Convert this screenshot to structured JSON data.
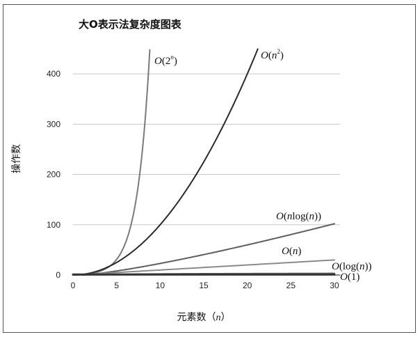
{
  "chart_data": {
    "type": "line",
    "title": "大O表示法复杂度图表",
    "xlabel_text": "元素数（",
    "xlabel_var": "n",
    "xlabel_close": "）",
    "ylabel": "操作数",
    "xlim": [
      0,
      30
    ],
    "ylim": [
      0,
      450
    ],
    "x_ticks": [
      0,
      5,
      10,
      15,
      20,
      25,
      30
    ],
    "y_ticks": [
      0,
      100,
      200,
      300,
      400
    ],
    "grid": "horizontal",
    "series": [
      {
        "name": "O(2^n)",
        "fn": "exp2",
        "color": "#7a7a7a",
        "width": 2,
        "x_range": [
          0,
          8.81
        ],
        "points": [
          [
            0,
            1
          ],
          [
            2,
            4
          ],
          [
            4,
            16
          ],
          [
            6,
            64
          ],
          [
            7,
            128
          ],
          [
            8,
            256
          ],
          [
            8.81,
            450
          ]
        ],
        "label": {
          "pre": "",
          "O": "O",
          "post1": "(2",
          "sup": "n",
          "post2": ")"
        }
      },
      {
        "name": "O(n^2)",
        "fn": "square",
        "color": "#2a2a2a",
        "width": 2,
        "x_range": [
          0,
          21.2
        ],
        "points": [
          [
            0,
            0
          ],
          [
            5,
            25
          ],
          [
            10,
            100
          ],
          [
            15,
            225
          ],
          [
            20,
            400
          ],
          [
            21.2,
            450
          ]
        ],
        "label": {
          "pre": "",
          "O": "O",
          "post1": "(",
          "var": "n",
          "sup": "2",
          "post2": ")"
        }
      },
      {
        "name": "O(n log(n))",
        "fn": "nlogn",
        "color": "#5e5e5e",
        "width": 2,
        "x_range": [
          1,
          30
        ],
        "points": [
          [
            1,
            0
          ],
          [
            10,
            23
          ],
          [
            20,
            60
          ],
          [
            30,
            102
          ]
        ],
        "label": {
          "O": "O",
          "text": "(nlog(n))"
        }
      },
      {
        "name": "O(n)",
        "fn": "linear",
        "color": "#8a8a8a",
        "width": 2,
        "x_range": [
          0,
          30
        ],
        "points": [
          [
            0,
            0
          ],
          [
            10,
            10
          ],
          [
            20,
            20
          ],
          [
            30,
            30
          ]
        ],
        "label": {
          "O": "O",
          "text": "(n)"
        }
      },
      {
        "name": "O(log(n))",
        "fn": "log",
        "color": "#6a6a6a",
        "width": 2,
        "x_range": [
          1,
          30
        ],
        "points": [
          [
            1,
            0
          ],
          [
            10,
            2.3
          ],
          [
            30,
            3.4
          ]
        ],
        "label": {
          "O": "O",
          "text": "(log(n))"
        }
      },
      {
        "name": "O(1)",
        "fn": "const",
        "color": "#333333",
        "width": 3,
        "x_range": [
          0,
          30
        ],
        "points": [
          [
            0,
            1
          ],
          [
            30,
            1
          ]
        ],
        "label": {
          "O": "O",
          "text": "(1)"
        }
      }
    ]
  }
}
